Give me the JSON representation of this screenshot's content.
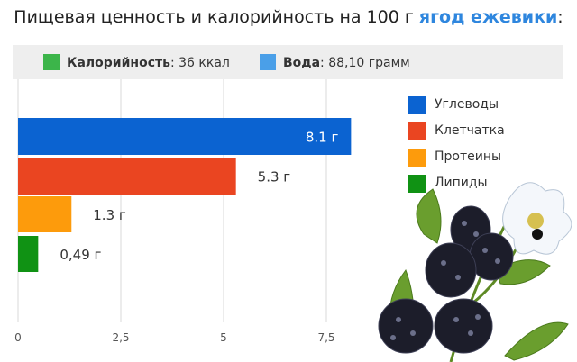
{
  "header": {
    "title_prefix": "Пищевая ценность и калорийность на 100 г ",
    "title_highlight": "ягод ежевики",
    "title_suffix": ":"
  },
  "stats": {
    "calories_label": "Калорийность",
    "calories_value": ": 36 ккал",
    "calories_color": "#3cb54a",
    "water_label": "Вода",
    "water_value": ": 88,10 грамм",
    "water_color": "#4a9fe8"
  },
  "chart_data": {
    "type": "bar",
    "orientation": "horizontal",
    "categories": [
      "Углеводы",
      "Клетчатка",
      "Протеины",
      "Липиды"
    ],
    "values": [
      8.1,
      5.3,
      1.3,
      0.49
    ],
    "value_labels": [
      "8.1 г",
      "5.3 г",
      "1.3 г",
      "0,49 г"
    ],
    "colors": [
      "#0b63d1",
      "#ea4521",
      "#fd9b0c",
      "#109214"
    ],
    "xlim": [
      0,
      8.6
    ],
    "xticks": [
      0,
      2.5,
      5,
      7.5
    ],
    "xtick_labels": [
      "0",
      "2,5",
      "5",
      "7,5"
    ],
    "grid": true,
    "legend_position": "right"
  },
  "decoration": {
    "image": "blackberries-illustration"
  }
}
